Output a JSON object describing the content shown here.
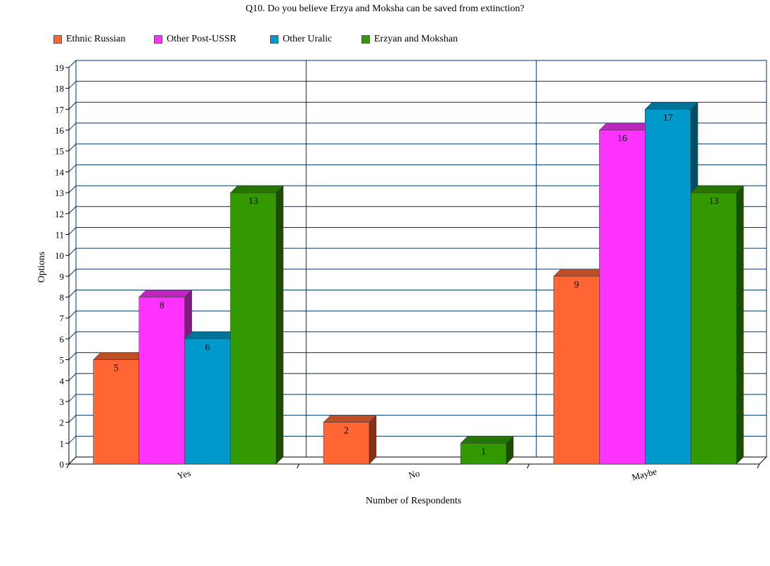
{
  "chart_data": {
    "type": "bar",
    "title": "Q10. Do you believe Erzya and Moksha can be saved from extinction?",
    "xlabel": "Number of Respondents",
    "ylabel": "Options",
    "categories": [
      "Yes",
      "No",
      "Maybe"
    ],
    "series": [
      {
        "name": "Ethnic Russian",
        "color": "#ff6633",
        "values": [
          5,
          2,
          9
        ]
      },
      {
        "name": "Other Post-USSR",
        "color": "#ff33ff",
        "values": [
          8,
          0,
          16
        ]
      },
      {
        "name": "Other Uralic",
        "color": "#0099cc",
        "values": [
          6,
          0,
          17
        ]
      },
      {
        "name": "Erzyan and Mokshan",
        "color": "#339900",
        "values": [
          13,
          1,
          13
        ]
      }
    ],
    "ylim": [
      0,
      19
    ],
    "yticks": [
      "0",
      "1",
      "2",
      "3",
      "4",
      "5",
      "6",
      "7",
      "8",
      "9",
      "10",
      "11",
      "12",
      "13",
      "14",
      "15",
      "16",
      "17",
      "18",
      "19"
    ],
    "grid": true,
    "legend": "top-left",
    "three_d": true
  }
}
